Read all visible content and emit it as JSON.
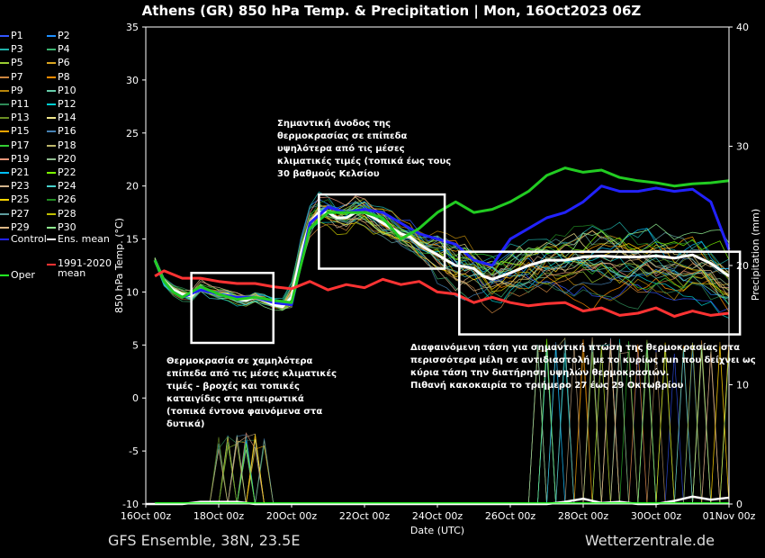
{
  "title": "Athens  (GR)  850 hPa Temp. & Precipitation | Mon, 16Oct2023 06Z",
  "footer_left": "GFS Ensemble, 38N, 23.5E",
  "footer_right": "Wetterzentrale.de",
  "chart_data": {
    "type": "line",
    "xlabel": "Date (UTC)",
    "ylabel": "850 hPa Temp. (°C)",
    "y2label": "Precipitation (mm)",
    "xlim": [
      0,
      16
    ],
    "ylim": [
      -10,
      35
    ],
    "y2lim": [
      0,
      40
    ],
    "x_ticks": [
      {
        "x": 0,
        "label": "16Oct 00z"
      },
      {
        "x": 2,
        "label": "18Oct 00z"
      },
      {
        "x": 4,
        "label": "20Oct 00z"
      },
      {
        "x": 6,
        "label": "22Oct 00z"
      },
      {
        "x": 8,
        "label": "24Oct 00z"
      },
      {
        "x": 10,
        "label": "26Oct 00z"
      },
      {
        "x": 12,
        "label": "28Oct 00z"
      },
      {
        "x": 14,
        "label": "30Oct 00z"
      },
      {
        "x": 16,
        "label": "01Nov 00z"
      }
    ],
    "y_ticks": [
      -10,
      -5,
      0,
      5,
      10,
      15,
      20,
      25,
      30,
      35
    ],
    "y2_ticks": [
      0,
      10,
      20,
      30,
      40
    ],
    "grid": false,
    "legend_position": "left",
    "legend": [
      "P1",
      "P2",
      "P3",
      "P4",
      "P5",
      "P6",
      "P7",
      "P8",
      "P9",
      "P10",
      "P11",
      "P12",
      "P13",
      "P14",
      "P15",
      "P16",
      "P17",
      "P18",
      "P19",
      "P20",
      "P21",
      "P22",
      "P23",
      "P24",
      "P25",
      "P26",
      "P27",
      "P28",
      "P29",
      "P30",
      "Control",
      "Ens. mean",
      "Oper",
      "1991-2020 mean"
    ],
    "series": [
      {
        "name": "Ens. mean",
        "color": "#ffffff",
        "x": [
          0.25,
          0.5,
          0.75,
          1,
          1.25,
          1.5,
          1.75,
          2,
          2.25,
          2.5,
          2.75,
          3,
          3.25,
          3.5,
          3.75,
          4,
          4.25,
          4.5,
          4.75,
          5,
          5.25,
          5.5,
          5.75,
          6,
          6.25,
          6.5,
          6.75,
          7,
          7.25,
          7.5,
          7.75,
          8,
          8.25,
          8.5,
          8.75,
          9,
          9.25,
          9.5,
          9.75,
          10,
          10.5,
          11,
          11.5,
          12,
          12.5,
          13,
          13.5,
          14,
          14.5,
          15,
          15.5,
          16
        ],
        "y": [
          13,
          11,
          10.2,
          9.8,
          9.6,
          10.5,
          10,
          9.8,
          9.7,
          9.3,
          9.2,
          9.5,
          9.2,
          8.8,
          8.6,
          9.5,
          13.5,
          16.5,
          17.5,
          17.5,
          17,
          17,
          17.5,
          17.5,
          17,
          16.5,
          16,
          15.5,
          15.2,
          14.5,
          14,
          13.5,
          13,
          12.5,
          12.4,
          12.2,
          11.5,
          11.2,
          11.5,
          11.8,
          12.5,
          13,
          13,
          13.3,
          13.4,
          13.3,
          13.3,
          13.4,
          13.2,
          13.5,
          12.7,
          11.5
        ]
      },
      {
        "name": "Control",
        "color": "#2222ff",
        "x": [
          0.25,
          0.5,
          0.75,
          1,
          1.5,
          2,
          2.5,
          3,
          3.5,
          4,
          4.5,
          5,
          5.5,
          6,
          6.5,
          7,
          7.5,
          8,
          8.5,
          9,
          9.5,
          10,
          10.5,
          11,
          11.5,
          12,
          12.5,
          13,
          13.5,
          14,
          14.5,
          15,
          15.5,
          16
        ],
        "y": [
          13,
          11,
          10,
          9.5,
          10.2,
          9.8,
          9.5,
          9.5,
          9,
          8.8,
          16.5,
          18,
          17.5,
          17.8,
          17.5,
          16.5,
          15.5,
          15,
          14.5,
          13,
          12.5,
          15,
          16,
          17,
          17.5,
          18.5,
          20,
          19.5,
          19.5,
          19.8,
          19.5,
          19.7,
          18.5,
          14
        ]
      },
      {
        "name": "Oper",
        "color": "#22cc22",
        "x": [
          0.25,
          0.5,
          0.75,
          1,
          1.5,
          2,
          2.5,
          3,
          3.5,
          4,
          4.5,
          5,
          5.5,
          6,
          6.5,
          7,
          7.5,
          8,
          8.5,
          9,
          9.5,
          10,
          10.5,
          11,
          11.5,
          12,
          12.5,
          13,
          13.5,
          14,
          14.5,
          15,
          15.5,
          16
        ],
        "y": [
          13,
          11,
          10,
          9.5,
          10.5,
          9.8,
          9.3,
          9.5,
          9.2,
          9,
          16,
          17.5,
          17.5,
          17.5,
          17,
          15,
          16,
          17.5,
          18.5,
          17.5,
          17.8,
          18.5,
          19.5,
          21,
          21.7,
          21.3,
          21.5,
          20.8,
          20.5,
          20.3,
          20,
          20.2,
          20.3,
          20.5
        ]
      },
      {
        "name": "1991-2020 mean",
        "color": "#ff3333",
        "x": [
          0.25,
          0.5,
          1,
          1.5,
          2,
          2.5,
          3,
          3.5,
          4,
          4.5,
          5,
          5.5,
          6,
          6.5,
          7,
          7.5,
          8,
          8.5,
          9,
          9.5,
          10,
          10.5,
          11,
          11.5,
          12,
          12.5,
          13,
          13.5,
          14,
          14.5,
          15,
          15.5,
          16
        ],
        "y": [
          11.5,
          12,
          11.3,
          11.3,
          11,
          10.8,
          10.8,
          10.5,
          10.3,
          11,
          10.2,
          10.7,
          10.4,
          11.2,
          10.7,
          11,
          10,
          9.8,
          9,
          9.5,
          9,
          8.7,
          8.9,
          9,
          8.2,
          8.5,
          7.8,
          8,
          8.5,
          7.7,
          8.2,
          7.8,
          8
        ]
      }
    ],
    "mean_precip_on_temp_axis": {
      "x": [
        0,
        1,
        1.5,
        2,
        2.5,
        3,
        3.5,
        4,
        5,
        6,
        7,
        8,
        9,
        10,
        11,
        11.5,
        12,
        12.5,
        13,
        13.5,
        14,
        14.5,
        15,
        15.5,
        16
      ],
      "y": [
        -10,
        -10,
        -9.8,
        -9.8,
        -9.8,
        -10,
        -10,
        -10,
        -10,
        -10,
        -10,
        -10,
        -10,
        -10,
        -10,
        -9.8,
        -9.5,
        -9.9,
        -9.8,
        -10,
        -10,
        -9.7,
        -9.3,
        -9.6,
        -9.4
      ]
    },
    "annotations": [
      {
        "lines": [
          "Σημαντική άνοδος της",
          "θερμοκρασίας σε επίπεδα",
          "υψηλότερα από τις μέσες",
          "κλιματικές τιμές (τοπικά έως τους",
          "30 βαθμούς Κελσίου"
        ]
      },
      {
        "lines": [
          "Θερμοκρασία σε χαμηλότερα",
          "επίπεδα από τις μέσες κλιματικές",
          "τιμές - βροχές και τοπικές",
          "καταιγίδες στα ηπειρωτικά",
          "(τοπικά έντονα φαινόμενα στα",
          "δυτικά)"
        ]
      },
      {
        "lines": [
          "Διαφαινόμενη τάση για σημαντική πτώση της θερμοκρασίας στα",
          "περισσότερα μέλη σε αντιδιαστολή με το κυρίως run που δείχνει ως",
          "κύρια τάση την διατήρηση υψηλών θερμοκρασιών.",
          "Πιθανή κακοκαιρία το τριήμερο 27 έως 29 Οκτωβρίου"
        ]
      }
    ],
    "highlight_boxes": [
      {
        "x": [
          1.25,
          3.5
        ],
        "y": [
          5.2,
          11.8
        ]
      },
      {
        "x": [
          4.75,
          8.2
        ],
        "y": [
          12.2,
          19.2
        ]
      },
      {
        "x": [
          8.6,
          16.3
        ],
        "y": [
          6,
          13.8
        ]
      }
    ]
  }
}
